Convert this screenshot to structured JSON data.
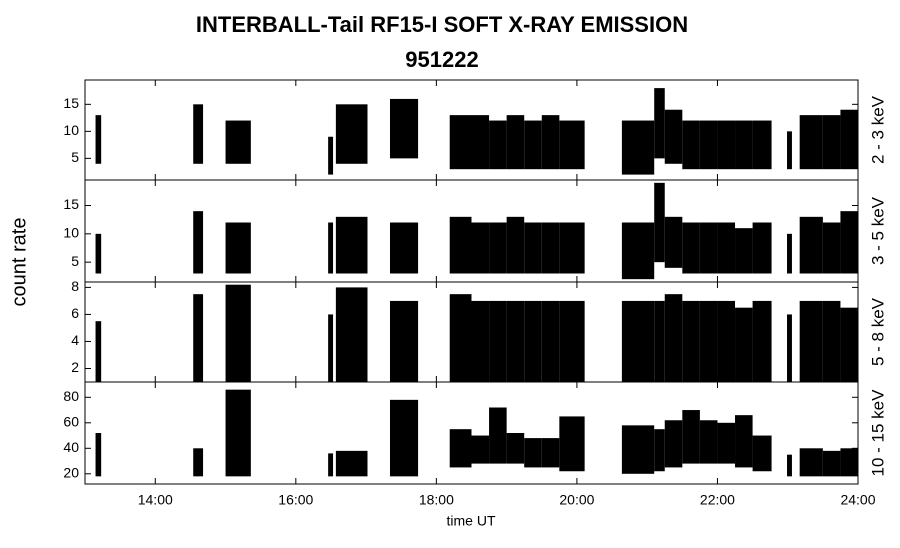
{
  "chart_data": {
    "type": "range-panels",
    "title": "INTERBALL-Tail RF15-I SOFT X-RAY EMISSION",
    "subtitle": "951222",
    "y_label": "count rate",
    "x_label": "time UT",
    "xlim": [
      13,
      24
    ],
    "xticks": [
      {
        "value": 14,
        "label": "14:00"
      },
      {
        "value": 16,
        "label": "16:00"
      },
      {
        "value": 18,
        "label": "18:00"
      },
      {
        "value": 20,
        "label": "20:00"
      },
      {
        "value": 22,
        "label": "22:00"
      },
      {
        "value": 24,
        "label": "24:00"
      }
    ],
    "color": "#000000",
    "bin_start": [
      13.15,
      14.54,
      15.0,
      16.46,
      16.57,
      17.34,
      18.19,
      18.5,
      18.75,
      19.0,
      19.25,
      19.5,
      19.75,
      20.64,
      21.1,
      21.25,
      21.5,
      21.75,
      22.0,
      22.25,
      22.5,
      22.99,
      23.17,
      23.5,
      23.75
    ],
    "bin_end": [
      13.23,
      14.68,
      15.36,
      16.53,
      17.02,
      17.74,
      18.5,
      18.75,
      19.0,
      19.25,
      19.5,
      19.75,
      20.11,
      21.1,
      21.25,
      21.5,
      21.75,
      22.0,
      22.25,
      22.5,
      22.77,
      23.06,
      23.5,
      23.75,
      24.0
    ],
    "panels": [
      {
        "label": "2 - 3 keV",
        "ylim": [
          1,
          19.5
        ],
        "yticks": [
          5,
          10,
          15
        ],
        "low": [
          4,
          4,
          4,
          2,
          4,
          5,
          3,
          3,
          3,
          3,
          3,
          3,
          3,
          2,
          5,
          4,
          3,
          3,
          3,
          3,
          3,
          3,
          3,
          3,
          3
        ],
        "high": [
          13,
          15,
          12,
          9,
          15,
          16,
          13,
          13,
          12,
          13,
          12,
          13,
          12,
          12,
          18,
          14,
          12,
          12,
          12,
          12,
          12,
          10,
          13,
          13,
          14
        ]
      },
      {
        "label": "3 - 5 keV",
        "ylim": [
          1.5,
          19.5
        ],
        "yticks": [
          5,
          10,
          15
        ],
        "low": [
          3,
          3,
          3,
          3,
          3,
          3,
          3,
          3,
          3,
          3,
          3,
          3,
          3,
          2,
          5,
          4,
          3,
          3,
          3,
          3,
          3,
          3,
          3,
          3,
          3
        ],
        "high": [
          10,
          14,
          12,
          12,
          13,
          12,
          13,
          12,
          12,
          13,
          12,
          12,
          12,
          12,
          19,
          13,
          12,
          12,
          12,
          11,
          12,
          10,
          13,
          12,
          14
        ]
      },
      {
        "label": "5 - 8 keV",
        "ylim": [
          1,
          8.4
        ],
        "yticks": [
          2,
          4,
          6,
          8
        ],
        "low": [
          1,
          1,
          1,
          1,
          1,
          1,
          1,
          1,
          1,
          1,
          1,
          1,
          1,
          1,
          1,
          1,
          1,
          1,
          1,
          1,
          1,
          1,
          1,
          1,
          1
        ],
        "high": [
          5.5,
          7.5,
          8.2,
          6,
          8,
          7,
          7.5,
          7,
          7,
          7,
          7,
          7,
          7,
          7,
          7,
          7.5,
          7,
          7,
          7,
          6.5,
          7,
          6,
          7,
          7,
          6.5
        ]
      },
      {
        "label": "10 - 15 keV",
        "ylim": [
          12,
          92
        ],
        "yticks": [
          20,
          40,
          60,
          80
        ],
        "low": [
          18,
          18,
          18,
          18,
          18,
          18,
          25,
          28,
          28,
          28,
          25,
          25,
          22,
          20,
          22,
          25,
          28,
          28,
          28,
          25,
          22,
          18,
          18,
          18,
          18
        ],
        "high": [
          52,
          40,
          86,
          36,
          38,
          78,
          55,
          50,
          72,
          52,
          48,
          48,
          65,
          58,
          55,
          62,
          70,
          62,
          60,
          66,
          50,
          35,
          40,
          38,
          40
        ]
      }
    ]
  }
}
